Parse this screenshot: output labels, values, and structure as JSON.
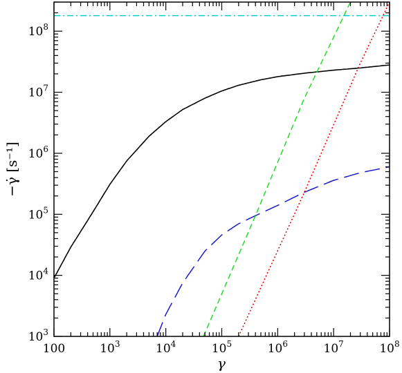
{
  "chart_data": {
    "type": "line",
    "xscale": "log",
    "yscale": "log",
    "xlim": [
      100,
      100000000
    ],
    "ylim": [
      1000,
      300000000
    ],
    "xlabel": "γ",
    "ylabel": "−γ̇ [s⁻¹]",
    "grid": false,
    "x_ticks": [
      {
        "value": 100,
        "base": "100",
        "exp": ""
      },
      {
        "value": 1000,
        "base": "10",
        "exp": "3"
      },
      {
        "value": 10000,
        "base": "10",
        "exp": "4"
      },
      {
        "value": 100000,
        "base": "10",
        "exp": "5"
      },
      {
        "value": 1000000,
        "base": "10",
        "exp": "6"
      },
      {
        "value": 10000000,
        "base": "10",
        "exp": "7"
      },
      {
        "value": 100000000,
        "base": "10",
        "exp": "8"
      }
    ],
    "y_ticks": [
      {
        "value": 1000,
        "base": "10",
        "exp": "3"
      },
      {
        "value": 10000,
        "base": "10",
        "exp": "4"
      },
      {
        "value": 100000,
        "base": "10",
        "exp": "5"
      },
      {
        "value": 1000000,
        "base": "10",
        "exp": "6"
      },
      {
        "value": 10000000,
        "base": "10",
        "exp": "7"
      },
      {
        "value": 100000000,
        "base": "10",
        "exp": "8"
      }
    ],
    "series": [
      {
        "color": "#000000",
        "dash": "solid",
        "x": [
          100,
          200,
          500,
          1000,
          2000,
          5000,
          10000,
          20000,
          50000,
          100000,
          200000,
          500000,
          1000000,
          3000000,
          10000000,
          30000000,
          100000000
        ],
        "y": [
          9000,
          29000,
          110000,
          310000,
          750000,
          1900000,
          3300000,
          5200000,
          8000000,
          10500000,
          13000000,
          16000000,
          18000000,
          20500000,
          23000000,
          25000000,
          28000000
        ]
      },
      {
        "color": "#1a1acc",
        "dash": "long-dash",
        "x": [
          7000,
          10000,
          20000,
          50000,
          100000,
          200000,
          400000,
          1000000,
          3000000,
          10000000,
          30000000,
          100000000
        ],
        "y": [
          1000,
          2300,
          7500,
          25000,
          46000,
          70000,
          95000,
          140000,
          230000,
          360000,
          480000,
          600000
        ]
      },
      {
        "color": "#22dd22",
        "dash": "dash",
        "x": [
          47000,
          400000,
          3000000,
          20000000
        ],
        "y": [
          1000,
          95000,
          8000000,
          300000000
        ]
      },
      {
        "color": "#dd0000",
        "dash": "dot",
        "x": [
          200000,
          3000000,
          30000000,
          100000000
        ],
        "y": [
          1000,
          230000,
          30000000,
          300000000
        ]
      },
      {
        "color": "#00cccc",
        "dash": "dash-dot",
        "x": [
          100,
          100000000
        ],
        "y": [
          180000000,
          180000000
        ]
      }
    ]
  }
}
